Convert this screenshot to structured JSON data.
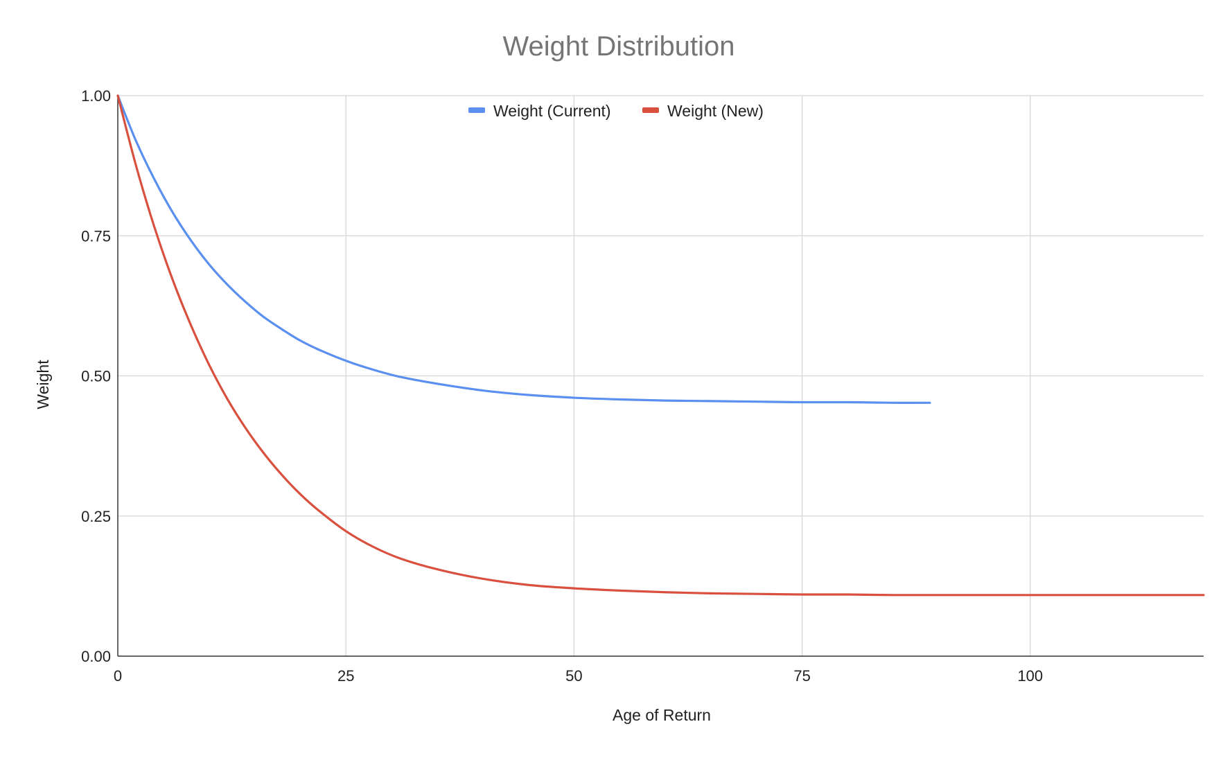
{
  "chart_data": {
    "type": "line",
    "title": "Weight Distribution",
    "xlabel": "Age of Return",
    "ylabel": "Weight",
    "xlim": [
      0,
      119
    ],
    "ylim": [
      0,
      1
    ],
    "x_ticks": [
      "0",
      "25",
      "50",
      "75",
      "100"
    ],
    "y_ticks": [
      "0.00",
      "0.25",
      "0.50",
      "0.75",
      "1.00"
    ],
    "grid": true,
    "legend": "top-center",
    "series": [
      {
        "name": "Weight (Current)",
        "color": "#5b8ff0",
        "x": [
          0,
          2,
          4,
          6,
          8,
          10,
          12,
          14,
          16,
          18,
          20,
          22,
          25,
          28,
          31,
          35,
          40,
          45,
          50,
          55,
          60,
          65,
          70,
          75,
          80,
          85,
          89
        ],
        "y": [
          1.0,
          0.919,
          0.851,
          0.792,
          0.742,
          0.699,
          0.663,
          0.632,
          0.605,
          0.583,
          0.563,
          0.547,
          0.527,
          0.511,
          0.498,
          0.486,
          0.474,
          0.466,
          0.461,
          0.458,
          0.456,
          0.455,
          0.454,
          0.453,
          0.453,
          0.452,
          0.452
        ]
      },
      {
        "name": "Weight (New)",
        "color": "#d9503f",
        "x": [
          0,
          2,
          4,
          6,
          8,
          10,
          12,
          14,
          16,
          18,
          20,
          22,
          25,
          28,
          31,
          35,
          40,
          45,
          50,
          55,
          60,
          65,
          70,
          75,
          80,
          85,
          90,
          95,
          100,
          105,
          110,
          115,
          119
        ],
        "y": [
          1.0,
          0.875,
          0.766,
          0.672,
          0.591,
          0.52,
          0.459,
          0.407,
          0.362,
          0.323,
          0.289,
          0.26,
          0.223,
          0.195,
          0.174,
          0.155,
          0.138,
          0.127,
          0.121,
          0.117,
          0.114,
          0.112,
          0.111,
          0.11,
          0.11,
          0.109,
          0.109,
          0.109,
          0.109,
          0.109,
          0.109,
          0.109,
          0.109
        ]
      }
    ]
  }
}
